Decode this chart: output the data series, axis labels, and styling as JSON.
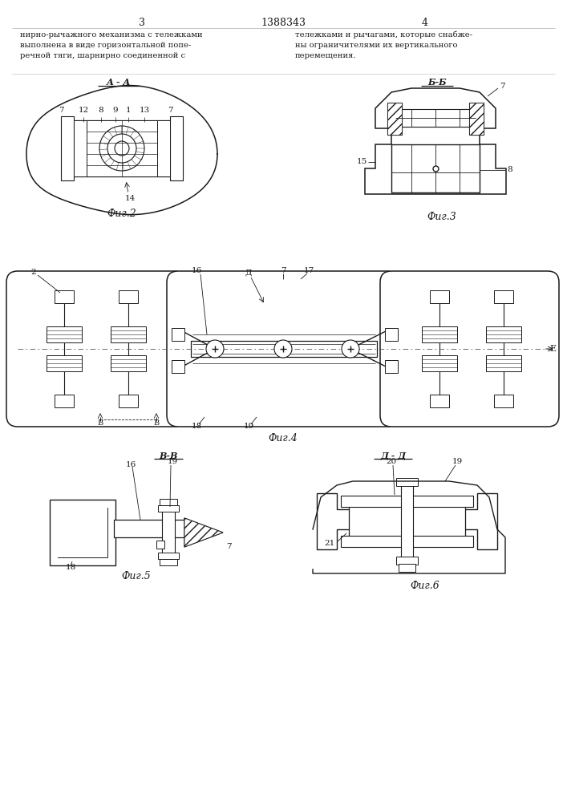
{
  "title": "1388343",
  "page_left": "3",
  "page_right": "4",
  "text_left": "нирно-рычажного механизма с тележками\nвыполнена в виде горизонтальной попе-\nречной тяги, шарнирно соединенной с",
  "text_right": "тележками и рычагами, которые снабже-\nны ограничителями их вертикального\nперемещения.",
  "fig2_label": "Фиг.2",
  "fig3_label": "Фиг.3",
  "fig4_label": "Фиг.4",
  "fig5_label": "Фиг.5",
  "fig6_label": "Фиг.6",
  "section_aa": "А - А",
  "section_bb": "Б-Б",
  "section_vv": "В-В",
  "section_dd": "Д - Д",
  "lc": "#1a1a1a"
}
